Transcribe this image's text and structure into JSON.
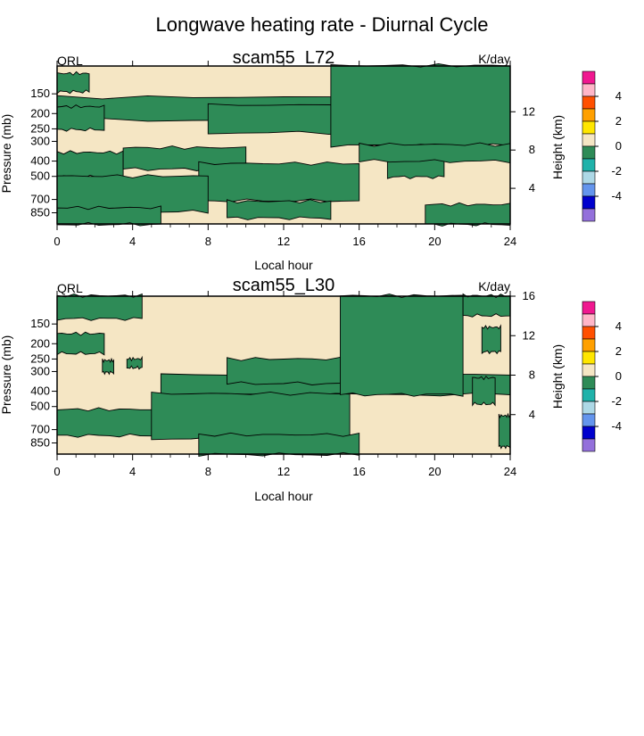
{
  "figure": {
    "title": "Longwave heating rate - Diurnal Cycle"
  },
  "colorbar": {
    "label": "",
    "ticks": [
      "4",
      "2",
      "0",
      "-2",
      "-4"
    ],
    "colors": [
      "#f01890",
      "#ffb6c8",
      "#ff5000",
      "#ffa000",
      "#ffe600",
      "#f5e6c4",
      "#2e8b57",
      "#20b2aa",
      "#add8e6",
      "#6495ed",
      "#0000cd",
      "#9370db"
    ]
  },
  "chart_data": [
    {
      "type": "heatmap",
      "title": "scam55_L72",
      "left_label": "QRL",
      "right_label": "K/day",
      "xlabel": "Local hour",
      "ylabel": "Pressure (mb)",
      "y2label": "Height (km)",
      "xlim": [
        0,
        24
      ],
      "xticks": [
        "0",
        "4",
        "8",
        "12",
        "16",
        "20",
        "24"
      ],
      "pressure_ticks": [
        150,
        200,
        250,
        300,
        400,
        500,
        700,
        850
      ],
      "height_ticks": [
        4,
        8,
        12
      ],
      "field": "QRL sign (>0 warming, <0 cooling)",
      "fill_colors": {
        "positive": "#f5e6c4",
        "negative": "#2e8b57"
      },
      "negative_regions": [
        {
          "hours": [
            0.0,
            1.7
          ],
          "levels": [
            0.05,
            0.16
          ]
        },
        {
          "hours": [
            0.0,
            24.0
          ],
          "levels": [
            0.2,
            0.34
          ]
        },
        {
          "hours": [
            0.0,
            2.5
          ],
          "levels": [
            0.26,
            0.4
          ]
        },
        {
          "hours": [
            8.0,
            24.0
          ],
          "levels": [
            0.25,
            0.42
          ]
        },
        {
          "hours": [
            0.0,
            3.5
          ],
          "levels": [
            0.55,
            0.7
          ]
        },
        {
          "hours": [
            3.5,
            10.0
          ],
          "levels": [
            0.52,
            0.65
          ]
        },
        {
          "hours": [
            7.5,
            16.0
          ],
          "levels": [
            0.62,
            0.85
          ]
        },
        {
          "hours": [
            17.5,
            20.5
          ],
          "levels": [
            0.58,
            0.7
          ]
        },
        {
          "hours": [
            0.0,
            8.0
          ],
          "levels": [
            0.7,
            0.92
          ]
        },
        {
          "hours": [
            9.0,
            14.5
          ],
          "levels": [
            0.86,
            0.96
          ]
        },
        {
          "hours": [
            0.0,
            5.5
          ],
          "levels": [
            0.9,
            1.0
          ]
        },
        {
          "hours": [
            14.5,
            24.0
          ],
          "levels": [
            0.0,
            0.5
          ]
        },
        {
          "hours": [
            16.0,
            24.0
          ],
          "levels": [
            0.5,
            0.6
          ]
        },
        {
          "hours": [
            19.5,
            24.0
          ],
          "levels": [
            0.88,
            1.0
          ]
        }
      ]
    },
    {
      "type": "heatmap",
      "title": "scam55_L30",
      "left_label": "QRL",
      "right_label": "K/day",
      "xlabel": "Local hour",
      "ylabel": "Pressure (mb)",
      "y2label": "Height (km)",
      "xlim": [
        0,
        24
      ],
      "xticks": [
        "0",
        "4",
        "8",
        "12",
        "16",
        "20",
        "24"
      ],
      "pressure_ticks": [
        150,
        200,
        250,
        300,
        400,
        500,
        700,
        850
      ],
      "height_ticks": [
        4,
        8,
        12,
        16
      ],
      "field": "QRL sign (>0 warming, <0 cooling)",
      "fill_colors": {
        "positive": "#f5e6c4",
        "negative": "#2e8b57"
      },
      "negative_regions": [
        {
          "hours": [
            0.0,
            4.5
          ],
          "levels": [
            0.0,
            0.14
          ]
        },
        {
          "hours": [
            0.0,
            2.5
          ],
          "levels": [
            0.24,
            0.36
          ]
        },
        {
          "hours": [
            2.4,
            3.0
          ],
          "levels": [
            0.41,
            0.48
          ]
        },
        {
          "hours": [
            3.7,
            4.5
          ],
          "levels": [
            0.4,
            0.45
          ]
        },
        {
          "hours": [
            5.5,
            24.0
          ],
          "levels": [
            0.5,
            0.62
          ]
        },
        {
          "hours": [
            9.0,
            16.5
          ],
          "levels": [
            0.4,
            0.55
          ]
        },
        {
          "hours": [
            0.0,
            5.5
          ],
          "levels": [
            0.72,
            0.88
          ]
        },
        {
          "hours": [
            5.0,
            15.5
          ],
          "levels": [
            0.62,
            0.9
          ]
        },
        {
          "hours": [
            7.5,
            16.0
          ],
          "levels": [
            0.88,
            1.0
          ]
        },
        {
          "hours": [
            15.0,
            21.5
          ],
          "levels": [
            0.0,
            0.62
          ]
        },
        {
          "hours": [
            21.5,
            24.0
          ],
          "levels": [
            0.0,
            0.12
          ]
        },
        {
          "hours": [
            22.5,
            23.5
          ],
          "levels": [
            0.2,
            0.35
          ]
        },
        {
          "hours": [
            22.0,
            23.2
          ],
          "levels": [
            0.52,
            0.68
          ]
        },
        {
          "hours": [
            23.4,
            24.0
          ],
          "levels": [
            0.76,
            0.95
          ]
        }
      ]
    }
  ]
}
